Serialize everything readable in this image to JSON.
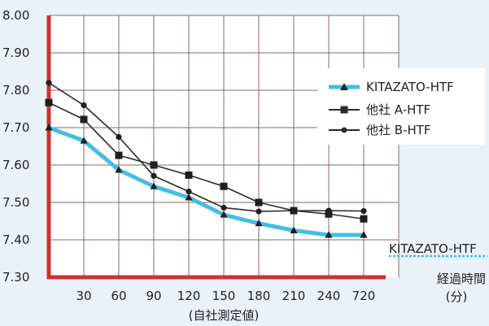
{
  "chart_data": {
    "type": "line",
    "categories": [
      "",
      "30",
      "60",
      "90",
      "120",
      "150",
      "180",
      "210",
      "240",
      "720"
    ],
    "ylim": [
      7.3,
      8.0
    ],
    "yticks": [
      "8.00",
      "7.90",
      "7.80",
      "7.70",
      "7.60",
      "7.50",
      "7.40",
      "7.30"
    ],
    "xlabel": "(自社測定値)",
    "x_unit_label_1": "経過時間",
    "x_unit_label_2": "(分)",
    "grid": true,
    "legend_position": "upper-right",
    "series": [
      {
        "name": "KITAZATO-HTF",
        "color": "#45bde6",
        "marker": "triangle",
        "values": [
          7.7,
          7.665,
          7.587,
          7.543,
          7.513,
          7.467,
          7.444,
          7.425,
          7.413,
          7.413
        ]
      },
      {
        "name": "他社 A-HTF",
        "color": "#2b2b2b",
        "marker": "square",
        "values": [
          7.767,
          7.722,
          7.626,
          7.6,
          7.573,
          7.543,
          7.5,
          7.478,
          7.469,
          7.456
        ]
      },
      {
        "name": "他社 B-HTF",
        "color": "#2b2b2b",
        "marker": "circle",
        "values": [
          7.82,
          7.76,
          7.675,
          7.571,
          7.529,
          7.486,
          7.476,
          7.478,
          7.478,
          7.477
        ]
      }
    ],
    "annotation": "KITAZATO-HTF"
  },
  "colors": {
    "axis": "#cc3333",
    "grid": "#8a6a6a",
    "plot_bg": "#ffffff",
    "page_bg": "#e9f1f9"
  }
}
